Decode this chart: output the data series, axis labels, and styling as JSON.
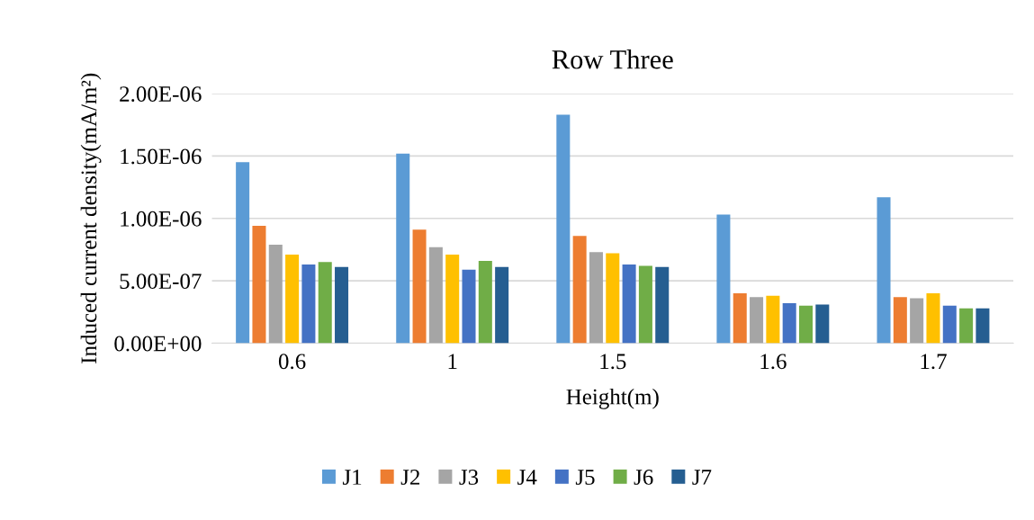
{
  "chart_data": {
    "type": "bar",
    "title": "Row Three",
    "xlabel": "Height(m)",
    "ylabel": "Induced current density(mA/m²)",
    "categories": [
      "0.6",
      "1",
      "1.5",
      "1.6",
      "1.7"
    ],
    "series": [
      {
        "name": "J1",
        "color": "#5b9bd5",
        "values": [
          1.45e-06,
          1.52e-06,
          1.83e-06,
          1.03e-06,
          1.17e-06
        ]
      },
      {
        "name": "J2",
        "color": "#ed7d31",
        "values": [
          9.4e-07,
          9.1e-07,
          8.6e-07,
          4e-07,
          3.7e-07
        ]
      },
      {
        "name": "J3",
        "color": "#a5a5a5",
        "values": [
          7.9e-07,
          7.7e-07,
          7.3e-07,
          3.7e-07,
          3.6e-07
        ]
      },
      {
        "name": "J4",
        "color": "#ffc000",
        "values": [
          7.1e-07,
          7.1e-07,
          7.2e-07,
          3.8e-07,
          4e-07
        ]
      },
      {
        "name": "J5",
        "color": "#4472c4",
        "values": [
          6.3e-07,
          5.9e-07,
          6.3e-07,
          3.2e-07,
          3e-07
        ]
      },
      {
        "name": "J6",
        "color": "#70ad47",
        "values": [
          6.5e-07,
          6.6e-07,
          6.2e-07,
          3e-07,
          2.8e-07
        ]
      },
      {
        "name": "J7",
        "color": "#255e91",
        "values": [
          6.1e-07,
          6.1e-07,
          6.1e-07,
          3.1e-07,
          2.8e-07
        ]
      }
    ],
    "ylim": [
      0,
      2e-06
    ],
    "yticks": [
      {
        "value": 0,
        "label": "0.00E+00"
      },
      {
        "value": 5e-07,
        "label": "5.00E-07"
      },
      {
        "value": 1e-06,
        "label": "1.00E-06"
      },
      {
        "value": 1.5e-06,
        "label": "1.50E-06"
      },
      {
        "value": 2e-06,
        "label": "2.00E-06"
      }
    ],
    "grid": "y",
    "legend": "bottom"
  }
}
